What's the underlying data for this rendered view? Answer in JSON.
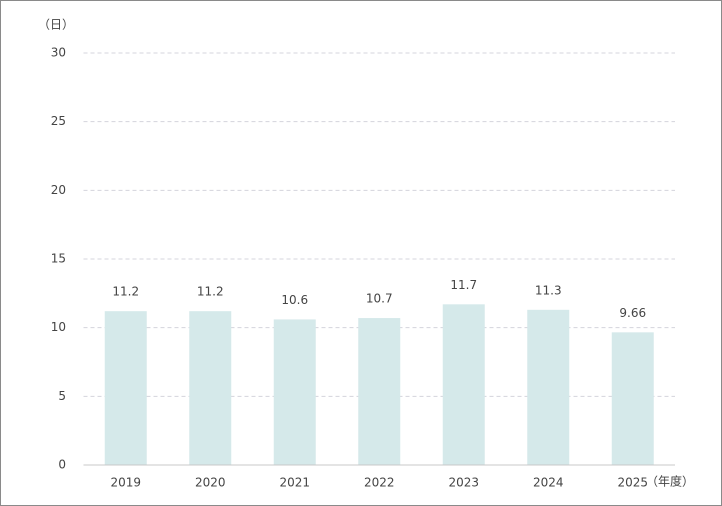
{
  "chart_data": {
    "type": "bar",
    "y_unit": "（日）",
    "x_unit": "（年度）",
    "categories": [
      "2019",
      "2020",
      "2021",
      "2022",
      "2023",
      "2024",
      "2025"
    ],
    "values": [
      11.2,
      11.2,
      10.6,
      10.7,
      11.7,
      11.3,
      9.66
    ],
    "color": "#d5e9ea",
    "ylim": [
      0,
      30
    ],
    "yticks": [
      0,
      5,
      10,
      15,
      20,
      25,
      30
    ],
    "grid": true
  }
}
